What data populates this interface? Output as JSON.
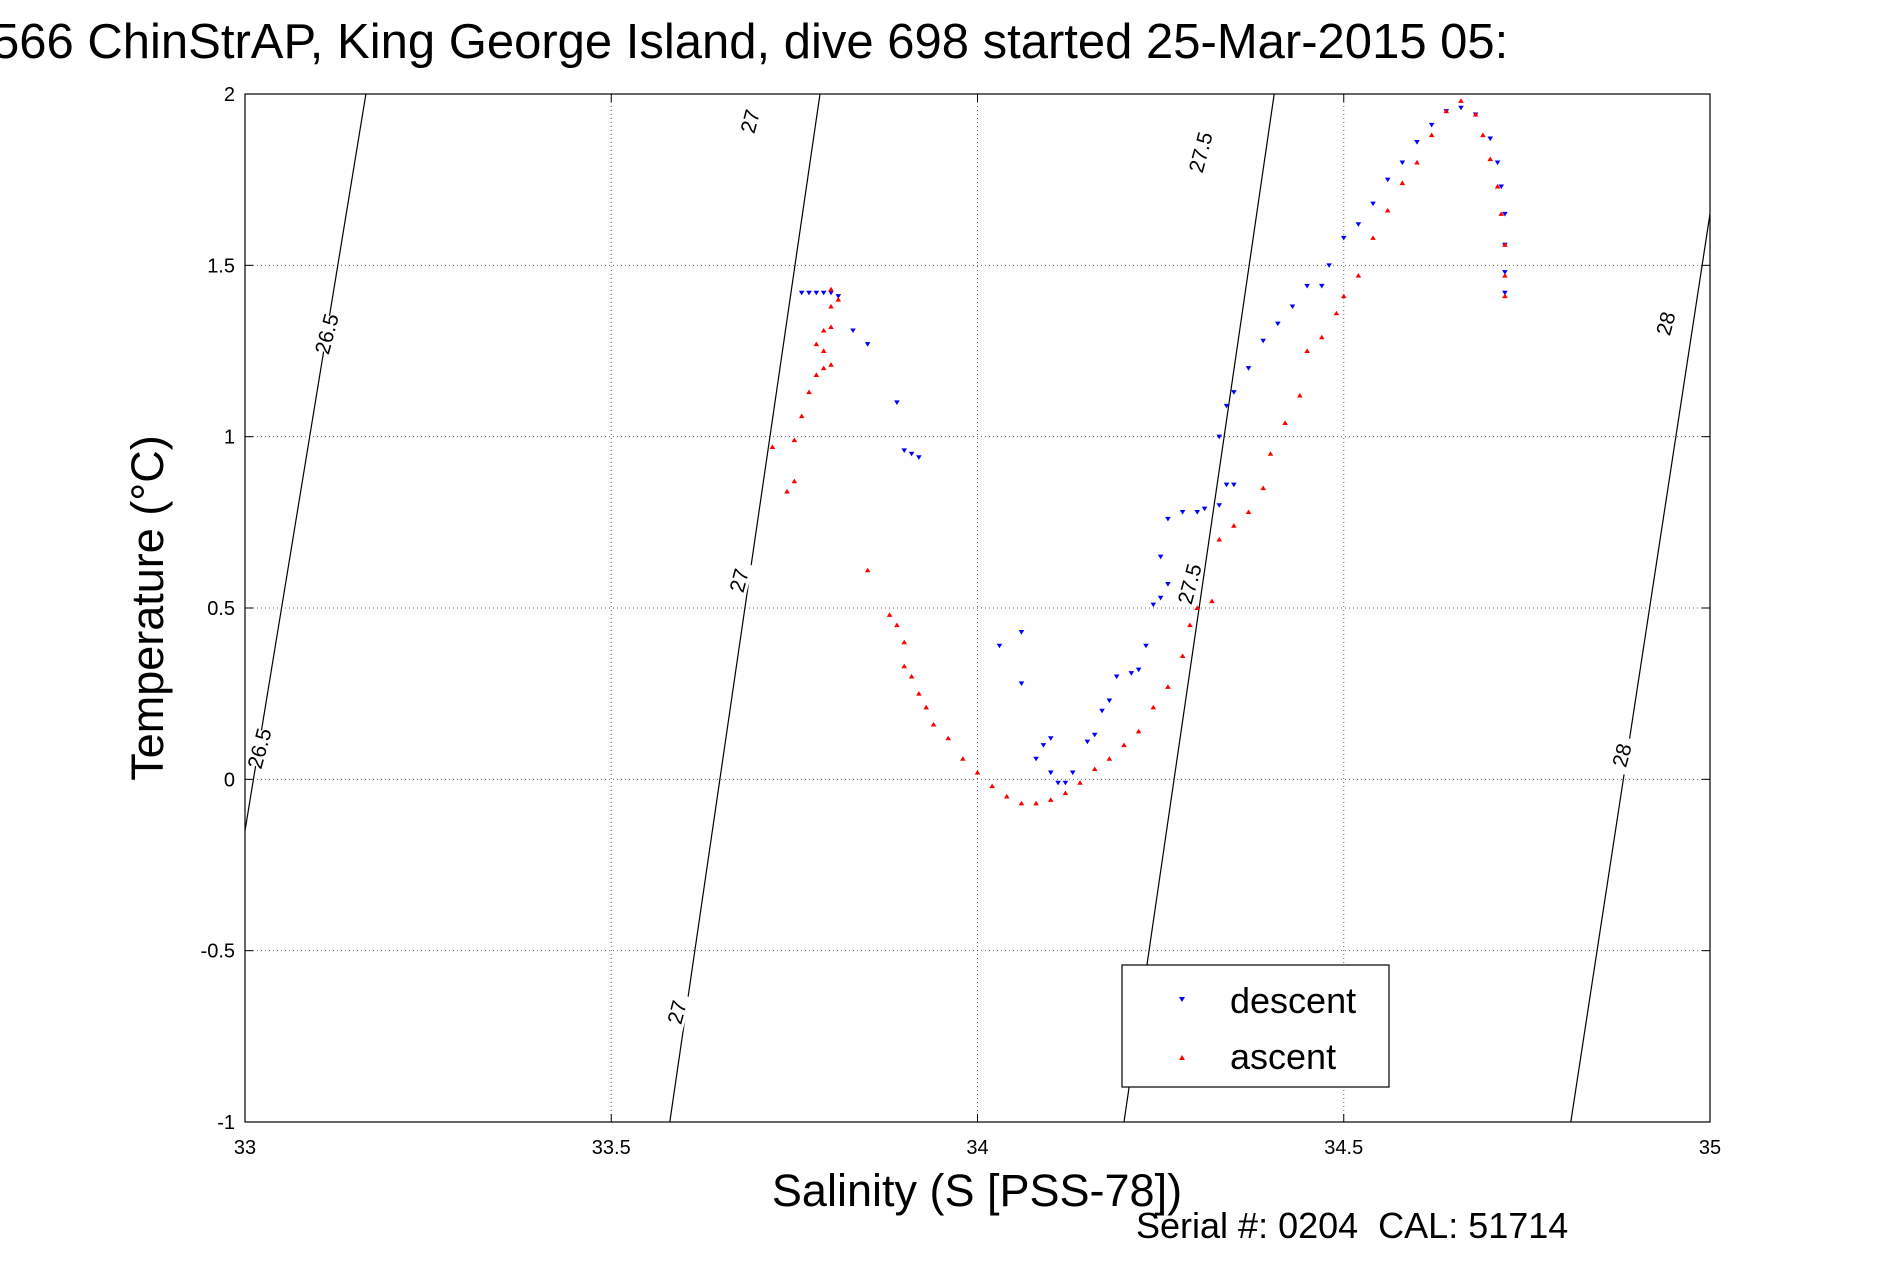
{
  "chart_data": {
    "type": "scatter",
    "title": "566 ChinStrAP, King George Island, dive 698 started 25-Mar-2015 05:",
    "xlabel": "Salinity (S [PSS-78])",
    "ylabel": "Temperature (°C)",
    "xlim": [
      33,
      35
    ],
    "ylim": [
      -1,
      2
    ],
    "x_ticks": [
      "33",
      "33.5",
      "34",
      "34.5",
      "35"
    ],
    "y_ticks": [
      "-1",
      "-0.5",
      "0",
      "0.5",
      "1",
      "1.5",
      "2"
    ],
    "grid": true,
    "legend_position": "bottom-right",
    "footer": "Serial #: 0204  CAL: 51714",
    "density_contours": [
      {
        "label": "26.5",
        "points": [
          [
            33.0,
            -0.15
          ],
          [
            33.165,
            2.0
          ]
        ]
      },
      {
        "label": "27",
        "points": [
          [
            33.58,
            -1.0
          ],
          [
            33.785,
            2.0
          ]
        ]
      },
      {
        "label": "27.5",
        "points": [
          [
            34.2,
            -1.0
          ],
          [
            34.405,
            2.0
          ]
        ]
      },
      {
        "label": "28",
        "points": [
          [
            34.81,
            -1.0
          ],
          [
            35.0,
            1.65
          ]
        ]
      }
    ],
    "contour_labels": [
      {
        "text": "26.5",
        "x": 33.112,
        "y": 1.3
      },
      {
        "text": "27",
        "x": 33.69,
        "y": 1.92
      },
      {
        "text": "26.5",
        "x": 33.02,
        "y": 0.09
      },
      {
        "text": "27",
        "x": 33.675,
        "y": 0.58
      },
      {
        "text": "27.5",
        "x": 34.305,
        "y": 1.83
      },
      {
        "text": "27.5",
        "x": 34.29,
        "y": 0.57
      },
      {
        "text": "28",
        "x": 34.94,
        "y": 1.33
      },
      {
        "text": "28",
        "x": 34.88,
        "y": 0.07
      },
      {
        "text": "27",
        "x": 33.59,
        "y": -0.68
      }
    ],
    "series": [
      {
        "name": "descent",
        "color": "#0000ff",
        "marker": "triangle-down",
        "points": [
          [
            33.76,
            1.42
          ],
          [
            33.77,
            1.42
          ],
          [
            33.78,
            1.42
          ],
          [
            33.79,
            1.42
          ],
          [
            33.8,
            1.42
          ],
          [
            33.81,
            1.41
          ],
          [
            33.83,
            1.31
          ],
          [
            33.85,
            1.27
          ],
          [
            33.89,
            1.1
          ],
          [
            33.9,
            0.96
          ],
          [
            33.92,
            0.94
          ],
          [
            33.91,
            0.95
          ],
          [
            34.03,
            0.39
          ],
          [
            34.06,
            0.43
          ],
          [
            34.06,
            0.28
          ],
          [
            34.08,
            0.06
          ],
          [
            34.09,
            0.1
          ],
          [
            34.1,
            0.12
          ],
          [
            34.1,
            0.02
          ],
          [
            34.11,
            -0.01
          ],
          [
            34.12,
            -0.01
          ],
          [
            34.13,
            0.02
          ],
          [
            34.15,
            0.11
          ],
          [
            34.16,
            0.13
          ],
          [
            34.17,
            0.2
          ],
          [
            34.18,
            0.23
          ],
          [
            34.19,
            0.3
          ],
          [
            34.21,
            0.31
          ],
          [
            34.22,
            0.32
          ],
          [
            34.23,
            0.39
          ],
          [
            34.24,
            0.51
          ],
          [
            34.25,
            0.53
          ],
          [
            34.26,
            0.57
          ],
          [
            34.25,
            0.65
          ],
          [
            34.26,
            0.76
          ],
          [
            34.28,
            0.78
          ],
          [
            34.3,
            0.78
          ],
          [
            34.31,
            0.79
          ],
          [
            34.33,
            0.8
          ],
          [
            34.34,
            0.86
          ],
          [
            34.35,
            0.86
          ],
          [
            34.33,
            1.0
          ],
          [
            34.34,
            1.09
          ],
          [
            34.35,
            1.13
          ],
          [
            34.37,
            1.2
          ],
          [
            34.39,
            1.28
          ],
          [
            34.41,
            1.33
          ],
          [
            34.43,
            1.38
          ],
          [
            34.45,
            1.44
          ],
          [
            34.47,
            1.44
          ],
          [
            34.48,
            1.5
          ],
          [
            34.5,
            1.58
          ],
          [
            34.52,
            1.62
          ],
          [
            34.54,
            1.68
          ],
          [
            34.56,
            1.75
          ],
          [
            34.58,
            1.8
          ],
          [
            34.6,
            1.86
          ],
          [
            34.62,
            1.91
          ],
          [
            34.64,
            1.95
          ],
          [
            34.66,
            1.96
          ],
          [
            34.68,
            1.94
          ],
          [
            34.7,
            1.87
          ],
          [
            34.71,
            1.8
          ],
          [
            34.715,
            1.73
          ],
          [
            34.72,
            1.65
          ],
          [
            34.72,
            1.56
          ],
          [
            34.72,
            1.48
          ],
          [
            34.72,
            1.42
          ]
        ]
      },
      {
        "name": "ascent",
        "color": "#ff0000",
        "marker": "triangle-up",
        "points": [
          [
            33.8,
            1.43
          ],
          [
            33.81,
            1.4
          ],
          [
            33.8,
            1.38
          ],
          [
            33.8,
            1.32
          ],
          [
            33.79,
            1.31
          ],
          [
            33.78,
            1.27
          ],
          [
            33.79,
            1.25
          ],
          [
            33.8,
            1.21
          ],
          [
            33.78,
            1.18
          ],
          [
            33.79,
            1.2
          ],
          [
            33.77,
            1.13
          ],
          [
            33.76,
            1.06
          ],
          [
            33.75,
            0.99
          ],
          [
            33.72,
            0.97
          ],
          [
            33.75,
            0.87
          ],
          [
            33.74,
            0.84
          ],
          [
            33.85,
            0.61
          ],
          [
            33.88,
            0.48
          ],
          [
            33.89,
            0.45
          ],
          [
            33.9,
            0.4
          ],
          [
            33.9,
            0.33
          ],
          [
            33.91,
            0.3
          ],
          [
            33.92,
            0.25
          ],
          [
            33.93,
            0.21
          ],
          [
            33.94,
            0.16
          ],
          [
            33.96,
            0.12
          ],
          [
            33.98,
            0.06
          ],
          [
            34.0,
            0.02
          ],
          [
            34.02,
            -0.02
          ],
          [
            34.04,
            -0.05
          ],
          [
            34.06,
            -0.07
          ],
          [
            34.08,
            -0.07
          ],
          [
            34.1,
            -0.06
          ],
          [
            34.12,
            -0.04
          ],
          [
            34.14,
            -0.01
          ],
          [
            34.16,
            0.03
          ],
          [
            34.18,
            0.06
          ],
          [
            34.2,
            0.1
          ],
          [
            34.22,
            0.14
          ],
          [
            34.24,
            0.21
          ],
          [
            34.26,
            0.27
          ],
          [
            34.28,
            0.36
          ],
          [
            34.29,
            0.45
          ],
          [
            34.3,
            0.5
          ],
          [
            34.32,
            0.52
          ],
          [
            34.33,
            0.7
          ],
          [
            34.35,
            0.74
          ],
          [
            34.37,
            0.78
          ],
          [
            34.39,
            0.85
          ],
          [
            34.4,
            0.95
          ],
          [
            34.42,
            1.04
          ],
          [
            34.44,
            1.12
          ],
          [
            34.45,
            1.25
          ],
          [
            34.47,
            1.29
          ],
          [
            34.49,
            1.36
          ],
          [
            34.5,
            1.41
          ],
          [
            34.52,
            1.47
          ],
          [
            34.54,
            1.58
          ],
          [
            34.56,
            1.66
          ],
          [
            34.58,
            1.74
          ],
          [
            34.6,
            1.8
          ],
          [
            34.62,
            1.88
          ],
          [
            34.64,
            1.95
          ],
          [
            34.66,
            1.98
          ],
          [
            34.68,
            1.94
          ],
          [
            34.69,
            1.88
          ],
          [
            34.7,
            1.81
          ],
          [
            34.71,
            1.73
          ],
          [
            34.715,
            1.65
          ],
          [
            34.72,
            1.56
          ],
          [
            34.72,
            1.47
          ],
          [
            34.72,
            1.41
          ]
        ]
      }
    ]
  }
}
